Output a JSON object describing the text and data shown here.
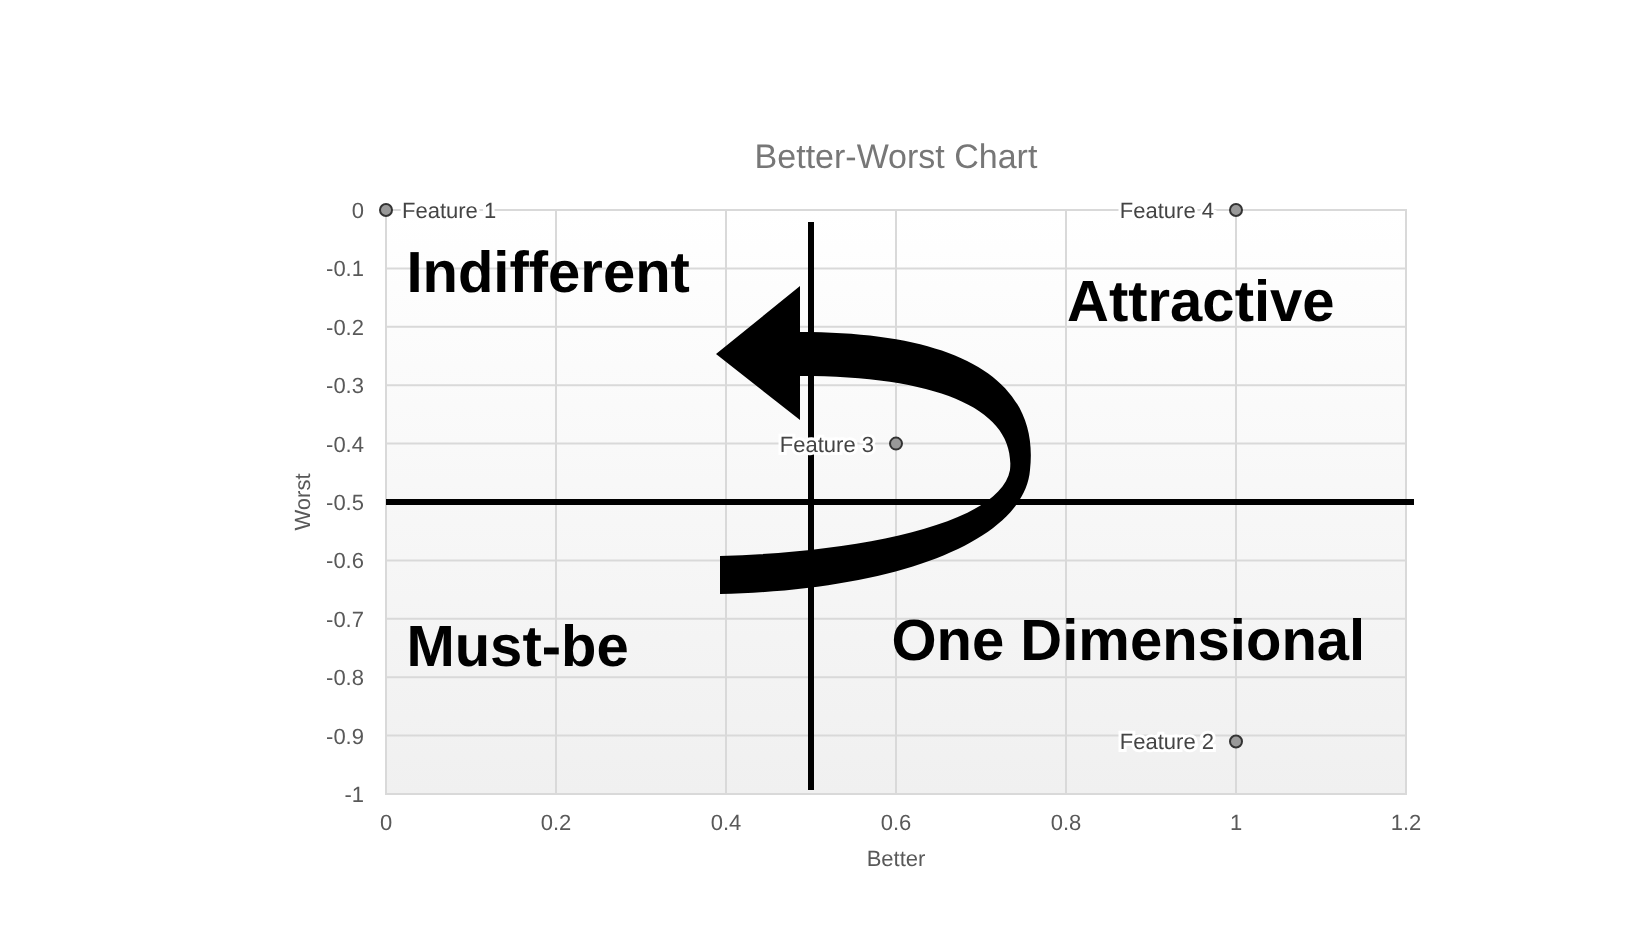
{
  "chart_data": {
    "type": "scatter",
    "title": "Better-Worst Chart",
    "xlabel": "Better",
    "ylabel": "Worst",
    "xlim": [
      0,
      1.2
    ],
    "xticks": [
      0,
      0.2,
      0.4,
      0.6,
      0.8,
      1,
      1.2
    ],
    "ylim": [
      -1,
      0
    ],
    "yticks": [
      -1,
      -0.9,
      -0.8,
      -0.7,
      -0.6,
      -0.5,
      -0.4,
      -0.3,
      -0.2,
      -0.1,
      0
    ],
    "grid": true,
    "marker": "circle",
    "series": [
      {
        "name": "Feature 1",
        "color": "#999999",
        "x": [
          0
        ],
        "values": [
          0
        ]
      },
      {
        "name": "Feature 2",
        "color": "#999999",
        "x": [
          1
        ],
        "values": [
          -0.91
        ]
      },
      {
        "name": "Feature 3",
        "color": "#999999",
        "x": [
          0.6
        ],
        "values": [
          -0.4
        ]
      },
      {
        "name": "Feature 4",
        "color": "#999999",
        "x": [
          1
        ],
        "values": [
          0
        ]
      }
    ],
    "ref_lines": [
      {
        "axis": "x",
        "value": 0.5,
        "color": "#000000"
      },
      {
        "axis": "y",
        "value": -0.5,
        "color": "#000000"
      }
    ],
    "annotations": [
      "Indifferent",
      "Attractive",
      "Must-be",
      "One Dimensional"
    ]
  }
}
